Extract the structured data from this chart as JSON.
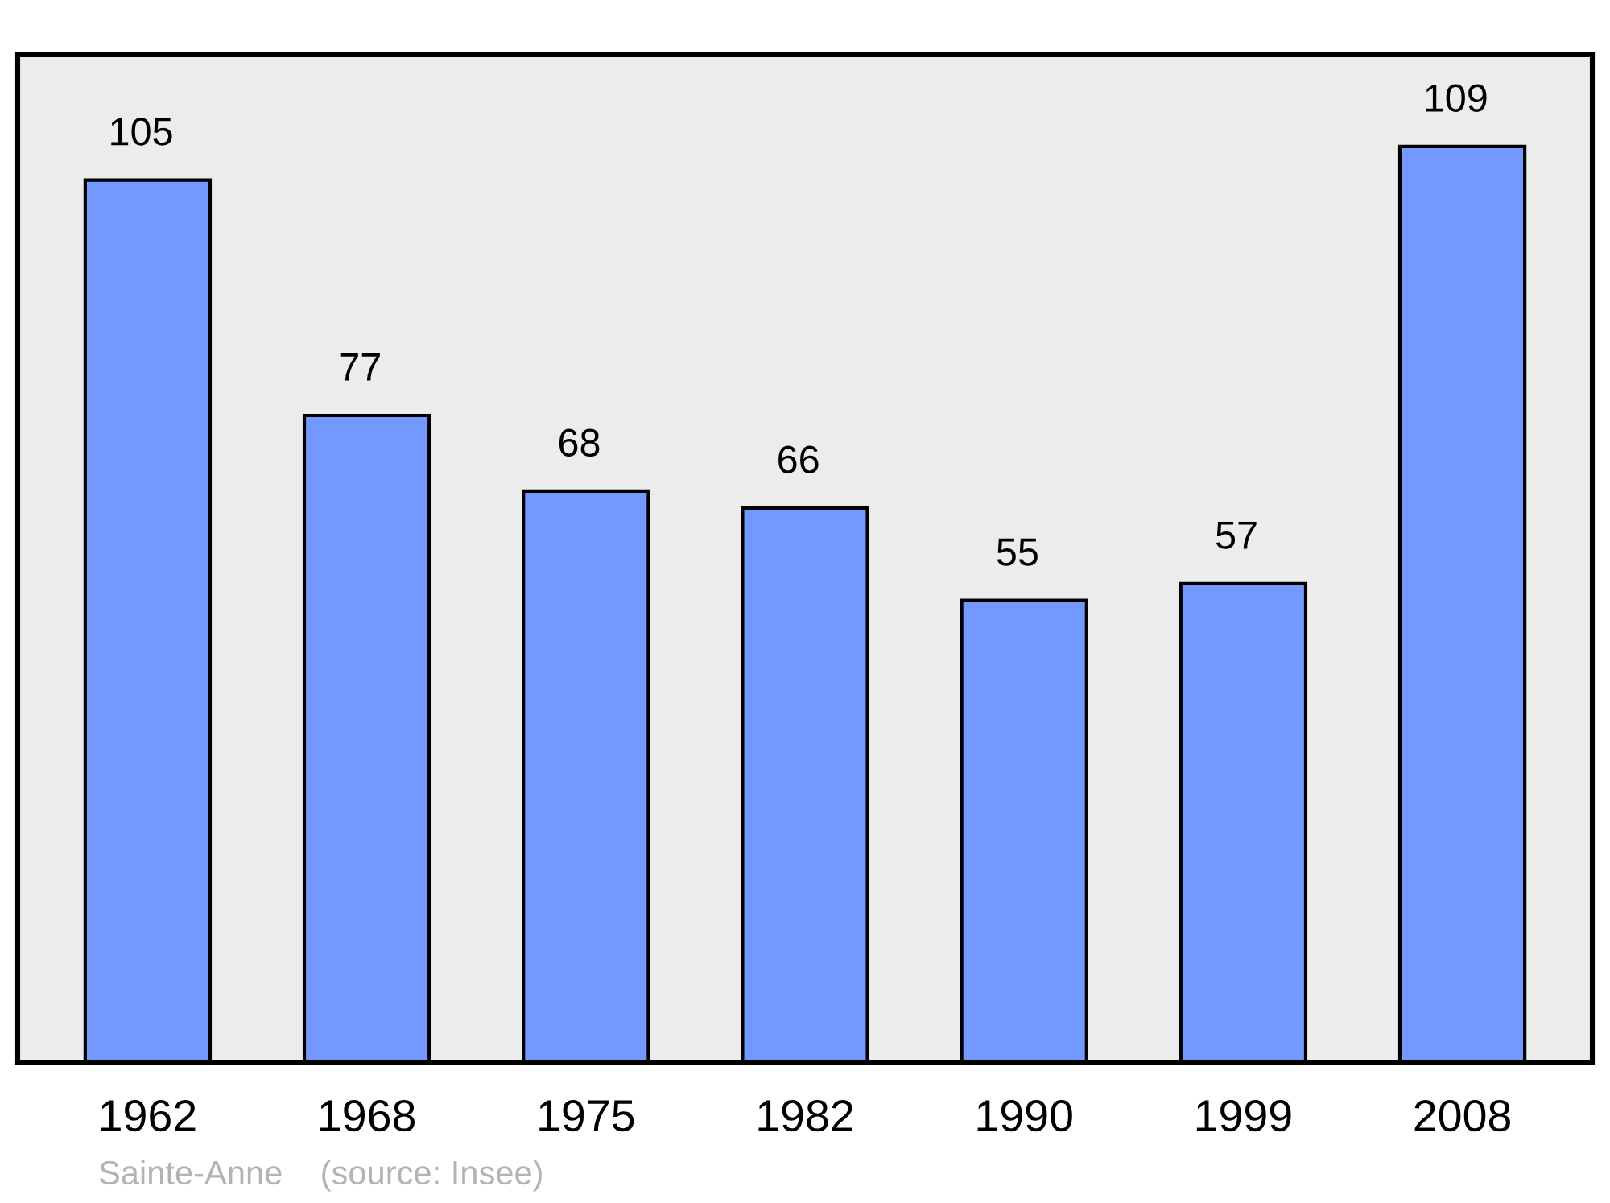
{
  "chart_data": {
    "type": "bar",
    "categories": [
      "1962",
      "1968",
      "1975",
      "1982",
      "1990",
      "1999",
      "2008"
    ],
    "values": [
      105,
      77,
      68,
      66,
      55,
      57,
      109
    ],
    "color": "#7399ff",
    "data_labels": true,
    "tick_labels": "x",
    "grid": false,
    "legend": false,
    "annotations": [
      "Sainte-Anne    (source: Insee)"
    ]
  }
}
